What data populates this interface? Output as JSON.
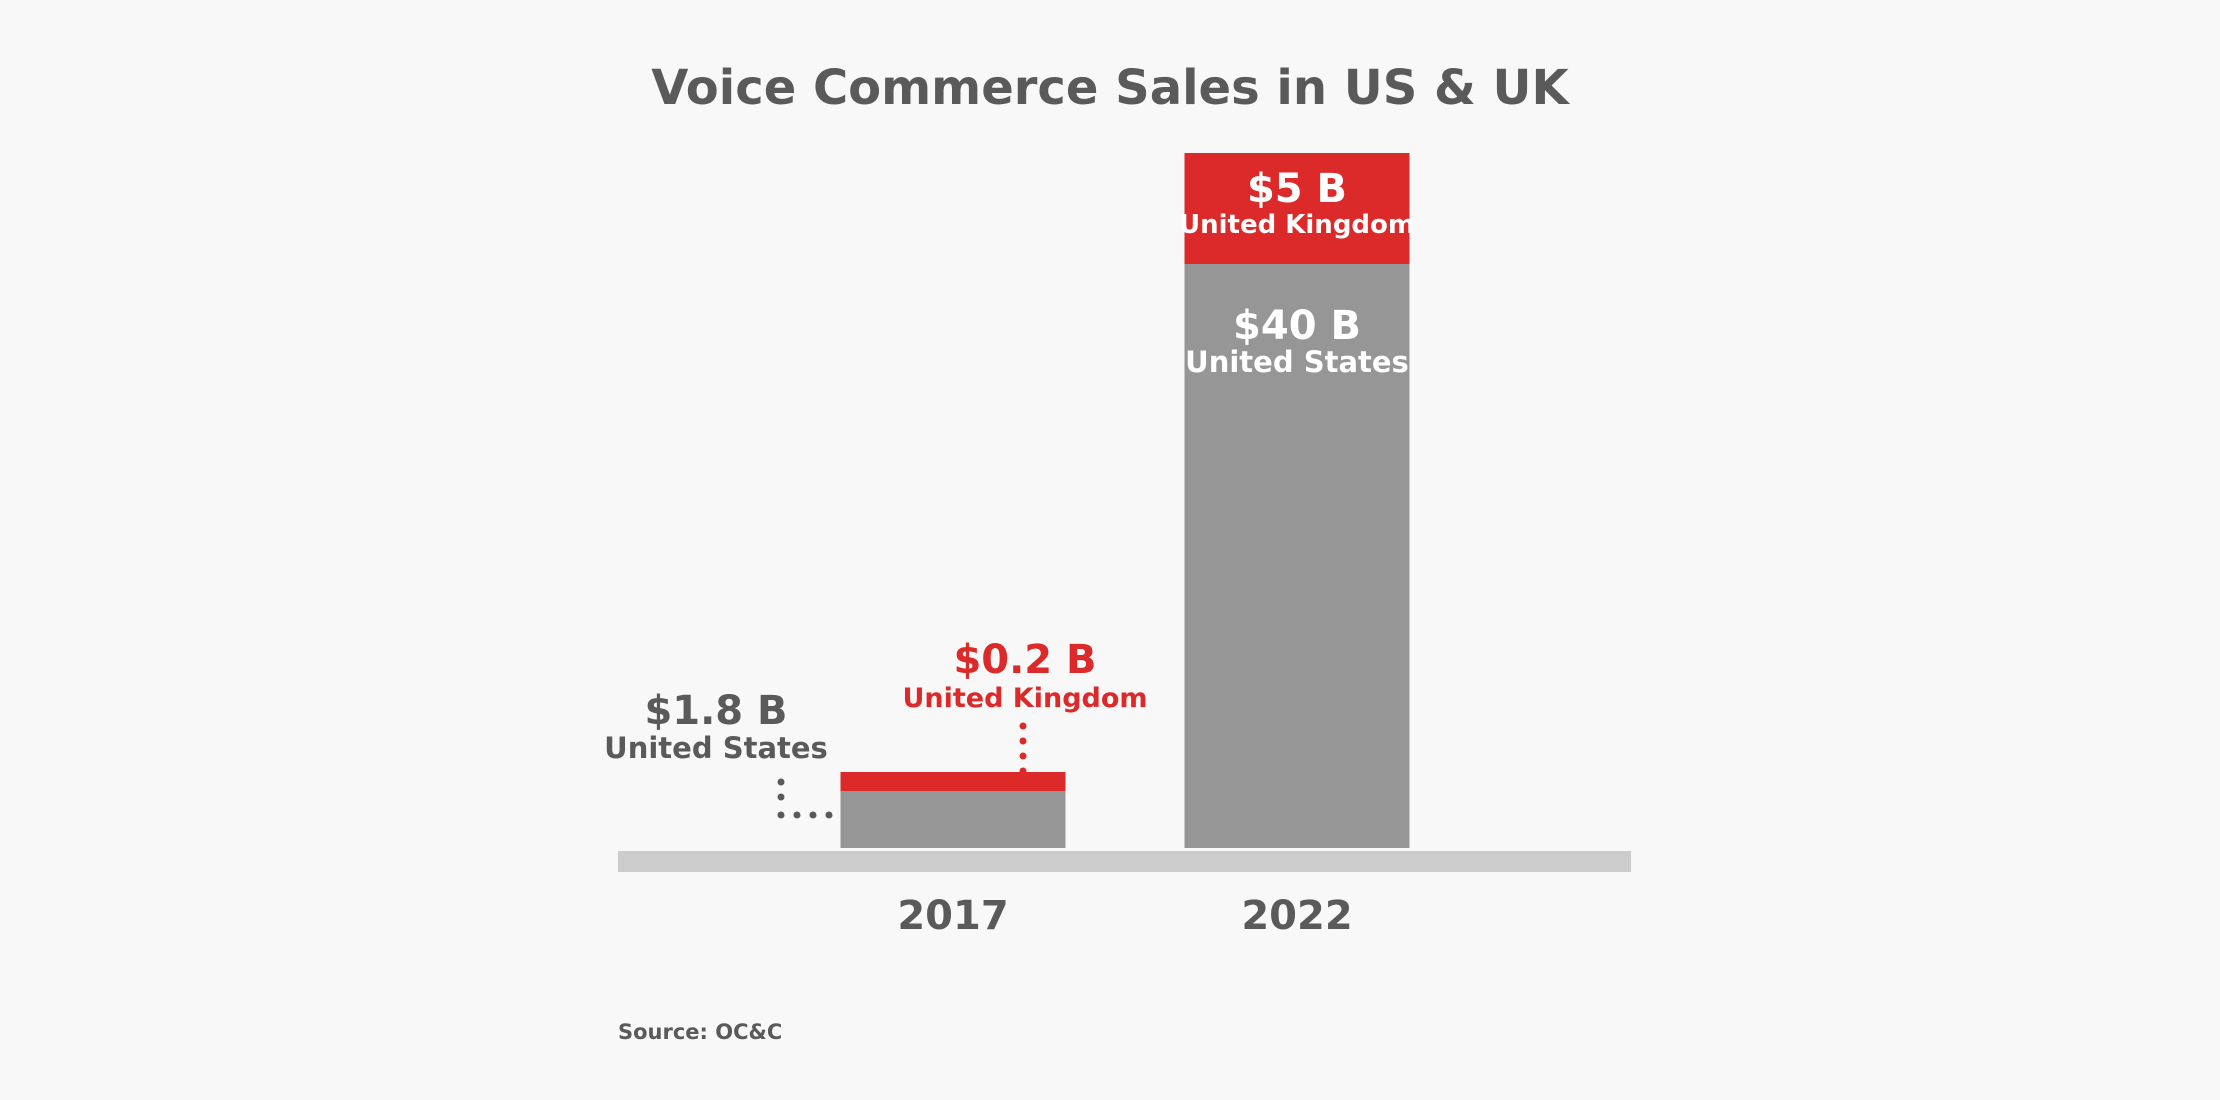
{
  "chart_data": {
    "type": "bar",
    "stacked": true,
    "title": "Voice Commerce Sales in US & UK",
    "categories": [
      "2017",
      "2022"
    ],
    "series": [
      {
        "name": "United States",
        "values": [
          1.8,
          40
        ],
        "value_labels": [
          "$1.8 B",
          "$40 B"
        ],
        "color": "#969696"
      },
      {
        "name": "United Kingdom",
        "values": [
          0.2,
          5
        ],
        "value_labels": [
          "$0.2 B",
          "$5 B"
        ],
        "color": "#dc2a2a"
      }
    ],
    "ylim": [
      0,
      45
    ],
    "grid": false,
    "legend": "none"
  },
  "source": "Source: OC&C",
  "colors": {
    "background": "#f8f8f8",
    "text": "#5a5a5a",
    "baseline": "#cccccc",
    "us": "#969696",
    "uk": "#dc2a2a"
  }
}
